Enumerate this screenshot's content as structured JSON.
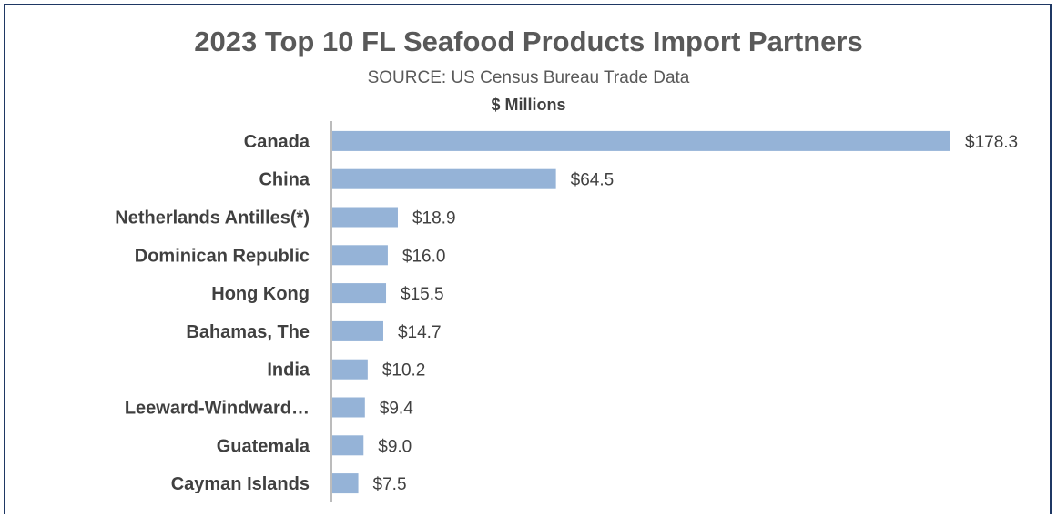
{
  "chart_data": {
    "type": "bar",
    "orientation": "horizontal",
    "title": "2023 Top 10 FL Seafood Products Import Partners",
    "subtitle": "SOURCE: US Census Bureau Trade Data",
    "units_label": "$ Millions",
    "categories": [
      "Canada",
      "China",
      "Netherlands Antilles(*)",
      "Dominican Republic",
      "Hong Kong",
      "Bahamas, The",
      "India",
      "Leeward-Windward…",
      "Guatemala",
      "Cayman Islands"
    ],
    "values": [
      178.3,
      64.5,
      18.9,
      16.0,
      15.5,
      14.7,
      10.2,
      9.4,
      9.0,
      7.5
    ],
    "value_labels": [
      "$178.3",
      "$64.5",
      "$18.9",
      "$16.0",
      "$15.5",
      "$14.7",
      "$10.2",
      "$9.4",
      "$9.0",
      "$7.5"
    ],
    "bar_color": "#95b3d7",
    "grid": false,
    "legend": "none"
  }
}
